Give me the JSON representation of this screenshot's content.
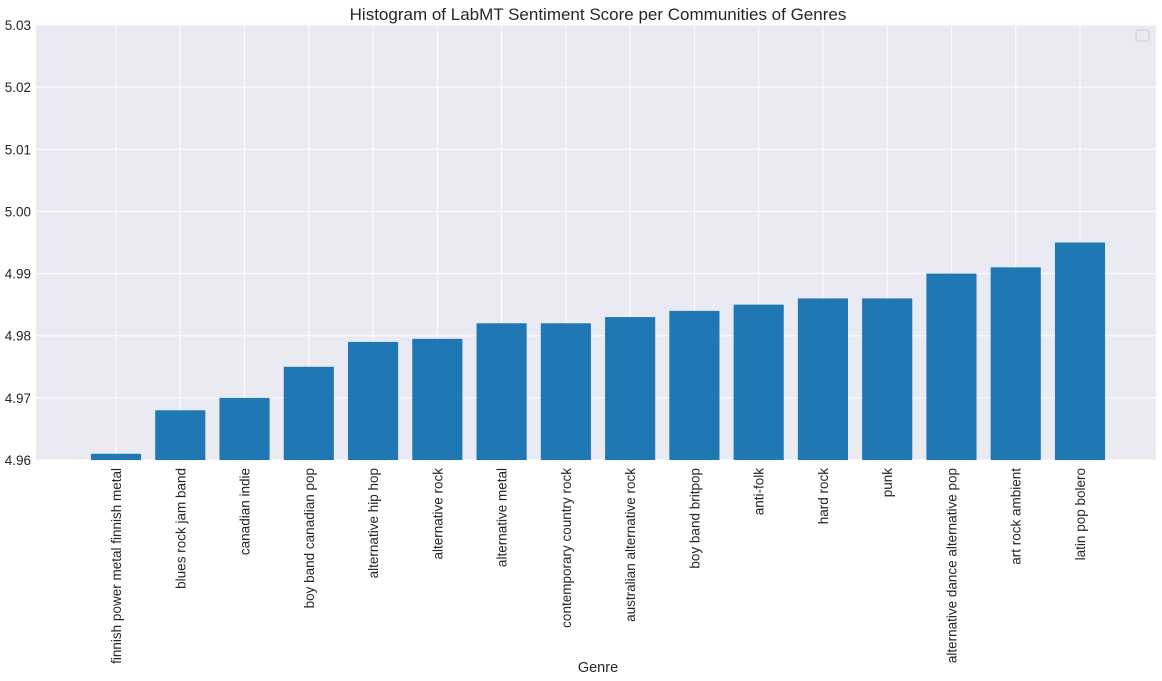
{
  "chart_data": {
    "type": "bar",
    "title": "Histogram of LabMT Sentiment Score per Communities of Genres",
    "xlabel": "Genre",
    "ylabel": "",
    "ylim": [
      4.96,
      5.03
    ],
    "yticks": [
      "4.96",
      "4.97",
      "4.98",
      "4.99",
      "5.00",
      "5.01",
      "5.02",
      "5.03"
    ],
    "grid": true,
    "legend": "top-right, empty",
    "bar_color": "#1f77b4",
    "background_color": "#eaeaf2",
    "categories": [
      "finnish power metal finnish metal",
      "blues rock jam band",
      "canadian indie",
      "boy band canadian pop",
      "alternative hip hop",
      "alternative rock",
      "alternative metal",
      "contemporary country rock",
      "australian alternative rock",
      "boy band britpop",
      "anti-folk",
      "hard rock",
      "punk",
      "alternative dance alternative pop",
      "art rock ambient",
      "latin pop bolero"
    ],
    "values": [
      4.961,
      4.968,
      4.97,
      4.975,
      4.979,
      4.9795,
      4.982,
      4.982,
      4.983,
      4.984,
      4.985,
      4.986,
      4.986,
      4.99,
      4.991,
      4.995
    ]
  }
}
